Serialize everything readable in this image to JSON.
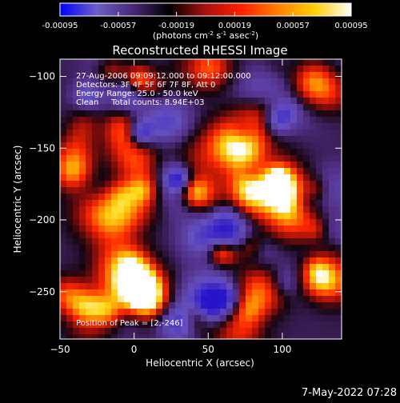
{
  "chart_data": {
    "type": "heatmap",
    "title": "Reconstructed RHESSI Image",
    "xlabel": "Heliocentric X (arcsec)",
    "ylabel": "Heliocentric Y (arcsec)",
    "xlim": [
      -50,
      140
    ],
    "ylim": [
      -283,
      -88
    ],
    "xticks": [
      -50,
      0,
      50,
      100
    ],
    "yticks": [
      -100,
      -150,
      -200,
      -250
    ],
    "colorbar": {
      "ticks": [
        -0.00095,
        -0.00057,
        -0.00019,
        0.00019,
        0.00057,
        0.00095
      ],
      "tick_labels": [
        "-0.00095",
        "-0.00057",
        "-0.00019",
        "0.00019",
        "0.00057",
        "0.00095"
      ],
      "label": "(photons cm",
      "label_exp1": "-2",
      "label_mid": " s",
      "label_exp2": "-1",
      "label_mid2": " asec",
      "label_exp3": "-2",
      "label_end": ")",
      "colors": [
        "#0000ff",
        "#6a5fc8",
        "#4a2878",
        "#000000",
        "#aa1010",
        "#ff2000",
        "#ff8000",
        "#ffd000",
        "#ffffff"
      ]
    },
    "annotations": [
      "27-Aug-2006 09:09:12.000 to 09:12:00.000",
      "Detectors: 3F 4F 5F 6F 7F 8F, Att 0",
      "Energy Range: 25.0 - 50.0 keV",
      "Clean     Total counts: 8.94E+03"
    ],
    "peak_label": "Position of Peak = [2,-246]",
    "peak_position": [
      2,
      -246
    ],
    "timestamp": "7-May-2022 07:28",
    "grid": false,
    "legend": "none"
  }
}
